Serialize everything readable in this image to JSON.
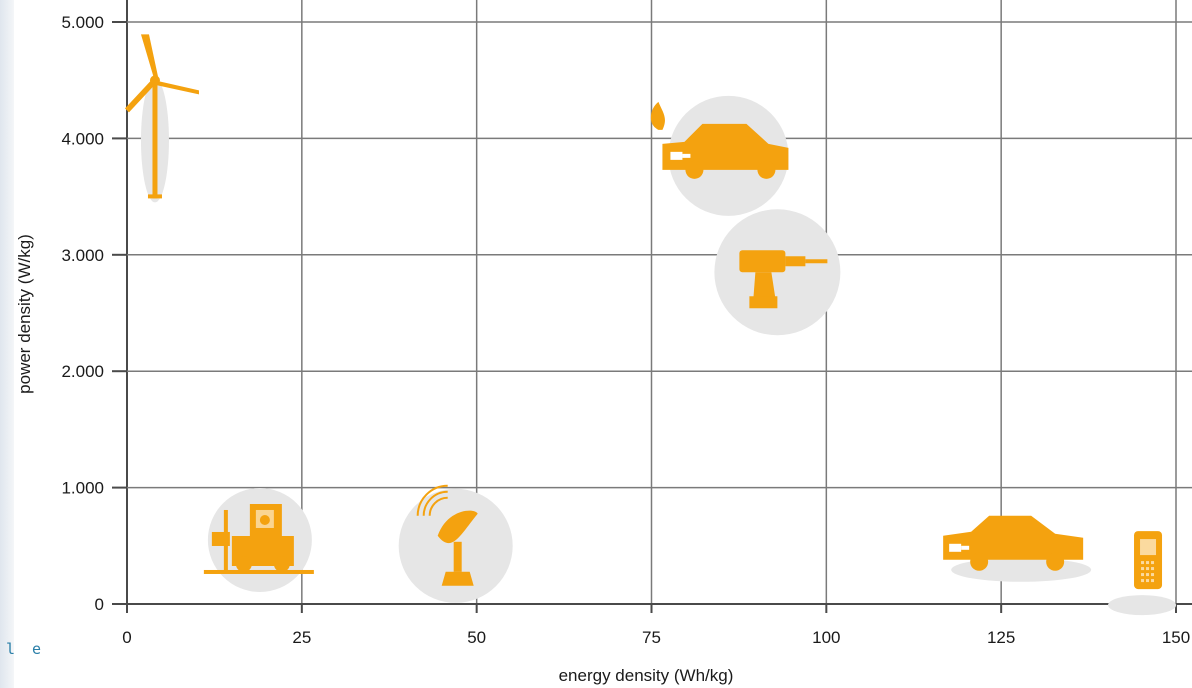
{
  "side_fragment": "l e",
  "chart_data": {
    "type": "scatter",
    "title": "",
    "xlabel": "energy density (Wh/kg)",
    "ylabel": "power density (W/kg)",
    "xlim": [
      0,
      150
    ],
    "ylim": [
      0,
      5000
    ],
    "x_ticks": [
      0,
      25,
      50,
      75,
      100,
      125,
      150
    ],
    "x_tick_labels": [
      "0",
      "25",
      "50",
      "75",
      "100",
      "125",
      "150"
    ],
    "y_ticks": [
      0,
      1000,
      2000,
      3000,
      4000,
      5000
    ],
    "y_tick_labels": [
      "0",
      "1.000",
      "2.000",
      "3.000",
      "4.000",
      "5.000"
    ],
    "grid": true,
    "colors": {
      "icon": "#f4a20f",
      "bubble": "#e6e6e6",
      "grid": "#7a7a7a",
      "axis": "#4a4a4a"
    },
    "points": [
      {
        "icon": "wind-turbine-icon",
        "x": 4,
        "y": 4000
      },
      {
        "icon": "electric-car-hybrid-icon",
        "x": 86,
        "y": 3850
      },
      {
        "icon": "power-drill-icon",
        "x": 93,
        "y": 2850
      },
      {
        "icon": "forklift-icon",
        "x": 19,
        "y": 550
      },
      {
        "icon": "satellite-dish-icon",
        "x": 47,
        "y": 500
      },
      {
        "icon": "electric-car-icon",
        "x": 127,
        "y": 500
      },
      {
        "icon": "mobile-phone-icon",
        "x": 146,
        "y": 300
      }
    ]
  }
}
